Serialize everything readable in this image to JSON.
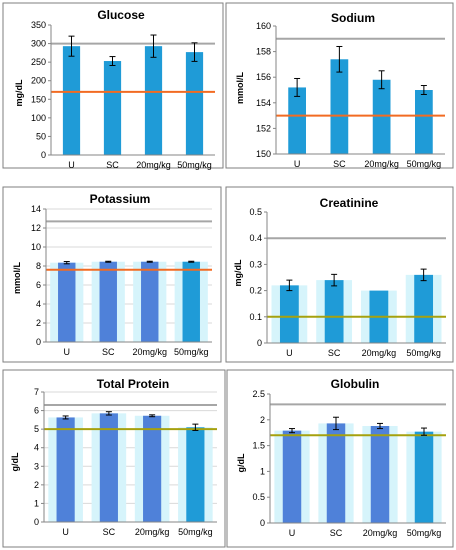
{
  "colors": {
    "bar": "#1f9bd7",
    "bar_alt": "#4f81d9",
    "bar_glow": "#d6f4fb",
    "upper_ref": "#a6a6a6",
    "orange_ref": "#f26b22",
    "olive_ref": "#a6a10e",
    "error_bar": "#000000",
    "frame": "#7f7f7f"
  },
  "chart_data": [
    {
      "type": "bar",
      "title": "Glucose",
      "ylabel": "mg/dL",
      "categories": [
        "U",
        "SC",
        "20mg/kg",
        "50mg/kg"
      ],
      "values": [
        293,
        253,
        293,
        277
      ],
      "errors": [
        27,
        12,
        30,
        25
      ],
      "ylim": [
        0,
        350
      ],
      "yticks": [
        "0",
        "50",
        "100",
        "150",
        "200",
        "250",
        "300",
        "350"
      ],
      "reference_lines": [
        {
          "value": 300,
          "color": "upper_ref"
        },
        {
          "value": 170,
          "color": "orange_ref"
        }
      ],
      "bar_style": "solid",
      "grid": false
    },
    {
      "type": "bar",
      "title": "Sodium",
      "ylabel": "mmol/L",
      "categories": [
        "U",
        "SC",
        "20mg/kg",
        "50mg/kg"
      ],
      "values": [
        155.2,
        157.4,
        155.8,
        155.0
      ],
      "errors": [
        0.7,
        1.0,
        0.7,
        0.35
      ],
      "ylim": [
        150,
        160
      ],
      "yticks": [
        "150",
        "152",
        "154",
        "156",
        "158",
        "160"
      ],
      "reference_lines": [
        {
          "value": 159,
          "color": "upper_ref"
        },
        {
          "value": 153,
          "color": "orange_ref"
        }
      ],
      "bar_style": "solid",
      "grid": false
    },
    {
      "type": "bar",
      "title": "Potassium",
      "ylabel": "mmol/L",
      "categories": [
        "U",
        "SC",
        "20mg/kg",
        "50mg/kg"
      ],
      "values": [
        8.35,
        8.45,
        8.45,
        8.45
      ],
      "errors": [
        0.12,
        0.05,
        0.05,
        0.05
      ],
      "ylim": [
        0,
        14
      ],
      "yticks": [
        "0",
        "2",
        "4",
        "6",
        "8",
        "10",
        "12",
        "14"
      ],
      "reference_lines": [
        {
          "value": 12.7,
          "color": "upper_ref"
        },
        {
          "value": 7.6,
          "color": "orange_ref"
        }
      ],
      "bar_style": "glow",
      "grid": true
    },
    {
      "type": "bar",
      "title": "Creatinine",
      "ylabel": "mg/dL",
      "categories": [
        "U",
        "SC",
        "20mg/kg",
        "50mg/kg"
      ],
      "values": [
        0.22,
        0.24,
        0.2,
        0.26
      ],
      "errors": [
        0.02,
        0.022,
        0.0,
        0.022
      ],
      "ylim": [
        0,
        0.5
      ],
      "yticks": [
        "0",
        "0.1",
        "0.2",
        "0.3",
        "0.4",
        "0.5"
      ],
      "reference_lines": [
        {
          "value": 0.4,
          "color": "upper_ref"
        },
        {
          "value": 0.1,
          "color": "olive_ref"
        }
      ],
      "bar_style": "glow",
      "grid": false
    },
    {
      "type": "bar",
      "title": "Total Protein",
      "ylabel": "g/dL",
      "categories": [
        "U",
        "SC",
        "20mg/kg",
        "50mg/kg"
      ],
      "values": [
        5.63,
        5.85,
        5.72,
        5.1
      ],
      "errors": [
        0.08,
        0.09,
        0.05,
        0.17
      ],
      "ylim": [
        0,
        7
      ],
      "yticks": [
        "0",
        "1",
        "2",
        "3",
        "4",
        "5",
        "6",
        "7"
      ],
      "reference_lines": [
        {
          "value": 6.3,
          "color": "upper_ref"
        },
        {
          "value": 5.0,
          "color": "olive_ref"
        }
      ],
      "bar_style": "glow",
      "grid": true
    },
    {
      "type": "bar",
      "title": "Globulin",
      "ylabel": "g/dL",
      "categories": [
        "U",
        "SC",
        "20mg/kg",
        "50mg/kg"
      ],
      "values": [
        1.79,
        1.93,
        1.88,
        1.77
      ],
      "errors": [
        0.04,
        0.12,
        0.05,
        0.07
      ],
      "ylim": [
        0,
        2.5
      ],
      "yticks": [
        "0",
        "0.5",
        "1",
        "1.5",
        "2",
        "2.5"
      ],
      "reference_lines": [
        {
          "value": 2.3,
          "color": "upper_ref"
        },
        {
          "value": 1.7,
          "color": "olive_ref"
        }
      ],
      "bar_style": "glow",
      "grid": false
    }
  ]
}
